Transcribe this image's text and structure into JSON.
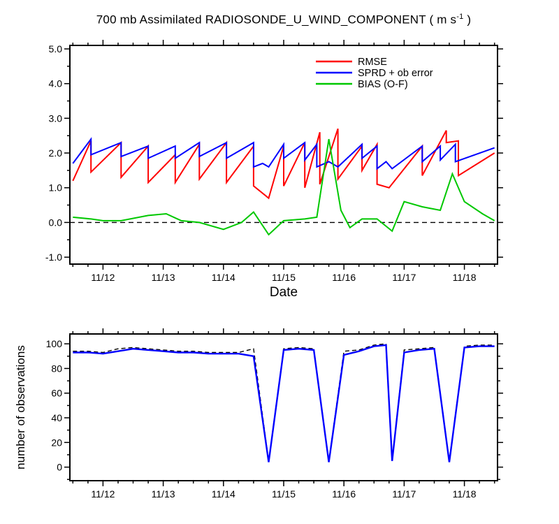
{
  "title": {
    "text": "700 mb Assimilated RADIOSONDE_U_WIND_COMPONENT ( m s-1 )"
  },
  "chart_data": [
    {
      "type": "line",
      "title": "700 mb Assimilated RADIOSONDE_U_WIND_COMPONENT ( m s-1 )",
      "title_parts": {
        "pre": "700 mb Assimilated RADIOSONDE_U_WIND_COMPONENT ( m s",
        "sup": "-1",
        "post": " )"
      },
      "xlabel": "Date",
      "ylabel": "",
      "xlim": [
        11.45,
        18.55
      ],
      "ylim": [
        -1.2,
        5.1
      ],
      "grid": false,
      "legend_position": "inside-top-center",
      "x_ticks": [
        {
          "v": 12,
          "label": "11/12"
        },
        {
          "v": 13,
          "label": "11/13"
        },
        {
          "v": 14,
          "label": "11/14"
        },
        {
          "v": 15,
          "label": "11/15"
        },
        {
          "v": 16,
          "label": "11/16"
        },
        {
          "v": 17,
          "label": "11/17"
        },
        {
          "v": 18,
          "label": "11/18"
        }
      ],
      "x_minor_step": 0.25,
      "y_ticks": [
        {
          "v": -1,
          "label": "-1.0"
        },
        {
          "v": 0,
          "label": "0.0"
        },
        {
          "v": 1,
          "label": "1.0"
        },
        {
          "v": 2,
          "label": "2.0"
        },
        {
          "v": 3,
          "label": "3.0"
        },
        {
          "v": 4,
          "label": "4.0"
        },
        {
          "v": 5,
          "label": "5.0"
        }
      ],
      "y_minor_step": 0.5,
      "ref_line": {
        "y": 0,
        "color": "#000000",
        "dash": "7 5"
      },
      "legend": [
        {
          "label": "RMSE",
          "color": "#ff0000"
        },
        {
          "label": "SPRD + ob error",
          "color": "#0000ff"
        },
        {
          "label": "BIAS (O-F)",
          "color": "#00c800"
        }
      ],
      "series": [
        {
          "name": "RMSE",
          "color": "#ff0000",
          "width": 2,
          "points": [
            [
              11.5,
              1.2
            ],
            [
              11.8,
              2.35
            ],
            [
              11.8,
              1.45
            ],
            [
              12.3,
              2.3
            ],
            [
              12.3,
              1.3
            ],
            [
              12.75,
              2.2
            ],
            [
              12.75,
              1.15
            ],
            [
              13.2,
              1.95
            ],
            [
              13.2,
              1.15
            ],
            [
              13.6,
              2.25
            ],
            [
              13.6,
              1.25
            ],
            [
              14.05,
              2.3
            ],
            [
              14.05,
              1.15
            ],
            [
              14.5,
              2.2
            ],
            [
              14.5,
              1.05
            ],
            [
              14.75,
              0.7
            ],
            [
              15.0,
              2.2
            ],
            [
              15.0,
              1.05
            ],
            [
              15.35,
              2.3
            ],
            [
              15.35,
              1.0
            ],
            [
              15.6,
              2.6
            ],
            [
              15.6,
              1.1
            ],
            [
              15.9,
              2.7
            ],
            [
              15.9,
              1.25
            ],
            [
              16.3,
              2.2
            ],
            [
              16.3,
              1.5
            ],
            [
              16.55,
              2.25
            ],
            [
              16.55,
              1.1
            ],
            [
              16.75,
              1.0
            ],
            [
              17.3,
              2.2
            ],
            [
              17.3,
              1.35
            ],
            [
              17.7,
              2.65
            ],
            [
              17.7,
              2.3
            ],
            [
              17.9,
              2.35
            ],
            [
              17.9,
              1.35
            ],
            [
              18.5,
              2.0
            ]
          ]
        },
        {
          "name": "SPRD + ob error",
          "color": "#0000ff",
          "width": 2,
          "points": [
            [
              11.5,
              1.7
            ],
            [
              11.8,
              2.4
            ],
            [
              11.8,
              1.95
            ],
            [
              12.3,
              2.3
            ],
            [
              12.3,
              1.9
            ],
            [
              12.75,
              2.2
            ],
            [
              12.75,
              1.85
            ],
            [
              13.2,
              2.2
            ],
            [
              13.2,
              1.85
            ],
            [
              13.6,
              2.3
            ],
            [
              13.6,
              1.9
            ],
            [
              14.05,
              2.3
            ],
            [
              14.05,
              1.85
            ],
            [
              14.5,
              2.3
            ],
            [
              14.5,
              1.6
            ],
            [
              14.65,
              1.7
            ],
            [
              14.75,
              1.6
            ],
            [
              15.0,
              2.25
            ],
            [
              15.0,
              1.85
            ],
            [
              15.35,
              2.3
            ],
            [
              15.35,
              1.8
            ],
            [
              15.55,
              2.25
            ],
            [
              15.55,
              1.6
            ],
            [
              15.75,
              1.75
            ],
            [
              15.9,
              1.6
            ],
            [
              16.3,
              2.25
            ],
            [
              16.3,
              1.85
            ],
            [
              16.55,
              2.2
            ],
            [
              16.55,
              1.55
            ],
            [
              16.7,
              1.75
            ],
            [
              16.8,
              1.55
            ],
            [
              17.3,
              2.2
            ],
            [
              17.3,
              1.75
            ],
            [
              17.6,
              2.2
            ],
            [
              17.6,
              1.8
            ],
            [
              17.85,
              2.25
            ],
            [
              17.85,
              1.75
            ],
            [
              18.5,
              2.15
            ]
          ]
        },
        {
          "name": "BIAS (O-F)",
          "color": "#00c800",
          "width": 2,
          "points": [
            [
              11.5,
              0.15
            ],
            [
              11.8,
              0.1
            ],
            [
              12.0,
              0.05
            ],
            [
              12.3,
              0.05
            ],
            [
              12.75,
              0.2
            ],
            [
              13.05,
              0.25
            ],
            [
              13.3,
              0.05
            ],
            [
              13.6,
              0.0
            ],
            [
              14.0,
              -0.2
            ],
            [
              14.3,
              0.0
            ],
            [
              14.5,
              0.3
            ],
            [
              14.75,
              -0.35
            ],
            [
              15.0,
              0.05
            ],
            [
              15.35,
              0.1
            ],
            [
              15.55,
              0.15
            ],
            [
              15.75,
              2.4
            ],
            [
              15.95,
              0.35
            ],
            [
              16.1,
              -0.15
            ],
            [
              16.3,
              0.1
            ],
            [
              16.55,
              0.1
            ],
            [
              16.8,
              -0.25
            ],
            [
              17.0,
              0.6
            ],
            [
              17.3,
              0.45
            ],
            [
              17.6,
              0.35
            ],
            [
              17.8,
              1.4
            ],
            [
              18.0,
              0.6
            ],
            [
              18.3,
              0.25
            ],
            [
              18.5,
              0.05
            ]
          ]
        }
      ]
    },
    {
      "type": "line",
      "title": "",
      "xlabel": "",
      "ylabel": "number of observations",
      "xlim": [
        11.45,
        18.55
      ],
      "ylim": [
        -11,
        108
      ],
      "grid": false,
      "x_ticks": [
        {
          "v": 12,
          "label": "11/12"
        },
        {
          "v": 13,
          "label": "11/13"
        },
        {
          "v": 14,
          "label": "11/14"
        },
        {
          "v": 15,
          "label": "11/15"
        },
        {
          "v": 16,
          "label": "11/16"
        },
        {
          "v": 17,
          "label": "11/17"
        },
        {
          "v": 18,
          "label": "11/18"
        }
      ],
      "x_minor_step": 0.25,
      "y_ticks": [
        {
          "v": 0,
          "label": "0"
        },
        {
          "v": 20,
          "label": "20"
        },
        {
          "v": 40,
          "label": "40"
        },
        {
          "v": 60,
          "label": "60"
        },
        {
          "v": 80,
          "label": "80"
        },
        {
          "v": 100,
          "label": "100"
        }
      ],
      "y_minor_step": 10,
      "series": [
        {
          "name": "obs-count-dashed-black",
          "color": "#000000",
          "width": 1.4,
          "dash": "6 4",
          "points": [
            [
              11.5,
              94
            ],
            [
              11.75,
              94
            ],
            [
              12.0,
              93
            ],
            [
              12.25,
              96
            ],
            [
              12.5,
              97
            ],
            [
              12.75,
              96
            ],
            [
              13.0,
              95
            ],
            [
              13.25,
              94
            ],
            [
              13.5,
              94
            ],
            [
              13.75,
              93
            ],
            [
              14.0,
              93
            ],
            [
              14.25,
              93
            ],
            [
              14.5,
              96
            ],
            [
              14.75,
              5
            ],
            [
              15.0,
              96
            ],
            [
              15.25,
              97
            ],
            [
              15.5,
              96
            ],
            [
              15.75,
              5
            ],
            [
              16.0,
              94
            ],
            [
              16.25,
              95
            ],
            [
              16.5,
              99
            ],
            [
              16.7,
              100
            ],
            [
              16.8,
              6
            ],
            [
              17.0,
              95
            ],
            [
              17.25,
              96
            ],
            [
              17.5,
              97
            ],
            [
              17.75,
              5
            ],
            [
              18.0,
              98
            ],
            [
              18.25,
              99
            ],
            [
              18.5,
              99
            ]
          ]
        },
        {
          "name": "obs-count-solid-blue",
          "color": "#0000ff",
          "width": 2.4,
          "points": [
            [
              11.5,
              93
            ],
            [
              11.75,
              93
            ],
            [
              12.0,
              92
            ],
            [
              12.25,
              94
            ],
            [
              12.5,
              96
            ],
            [
              12.75,
              95
            ],
            [
              13.0,
              94
            ],
            [
              13.25,
              93
            ],
            [
              13.5,
              93
            ],
            [
              13.75,
              92
            ],
            [
              14.0,
              92
            ],
            [
              14.25,
              92
            ],
            [
              14.5,
              90
            ],
            [
              14.75,
              4
            ],
            [
              15.0,
              95
            ],
            [
              15.25,
              96
            ],
            [
              15.5,
              95
            ],
            [
              15.75,
              4
            ],
            [
              16.0,
              91
            ],
            [
              16.25,
              94
            ],
            [
              16.5,
              98
            ],
            [
              16.7,
              99
            ],
            [
              16.8,
              5
            ],
            [
              17.0,
              93
            ],
            [
              17.25,
              95
            ],
            [
              17.5,
              96
            ],
            [
              17.75,
              4
            ],
            [
              18.0,
              97
            ],
            [
              18.25,
              98
            ],
            [
              18.5,
              98
            ]
          ]
        }
      ]
    }
  ]
}
